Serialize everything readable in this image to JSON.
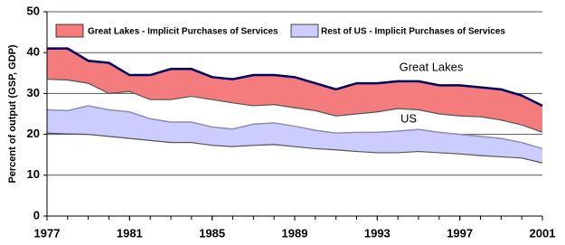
{
  "chart_data": {
    "type": "range-area",
    "y_axis_label": "Percent of output (GSP, GDP)",
    "x": [
      1977,
      1978,
      1979,
      1980,
      1981,
      1982,
      1983,
      1984,
      1985,
      1986,
      1987,
      1988,
      1989,
      1990,
      1991,
      1992,
      1993,
      1994,
      1995,
      1996,
      1997,
      1998,
      1999,
      2000,
      2001
    ],
    "xlim": [
      1977,
      2001
    ],
    "xticks": [
      1977,
      1981,
      1985,
      1989,
      1993,
      1997,
      2001
    ],
    "ylim": [
      0,
      50
    ],
    "yticks": [
      0,
      10,
      20,
      30,
      40,
      50
    ],
    "grid": true,
    "annotations": [
      "Great Lakes",
      "US"
    ],
    "series": [
      {
        "name": "Great Lakes - Implicit Purchases of Services",
        "color": "#f47c7c",
        "high_color": "#000066",
        "low_color": "#555555",
        "high": [
          41,
          41,
          38,
          37.5,
          34.5,
          34.5,
          36,
          36,
          34,
          33.5,
          34.5,
          34.5,
          34,
          32.5,
          31,
          32.5,
          32.5,
          33,
          33,
          32,
          32,
          31.5,
          31,
          29.5,
          27
        ],
        "low": [
          33.5,
          33.3,
          32.5,
          30,
          30.5,
          28.5,
          28.5,
          29.3,
          28.5,
          27.7,
          27,
          27.3,
          26.5,
          25.8,
          24.5,
          25,
          25.5,
          26.3,
          26,
          25,
          24.5,
          24.3,
          23.5,
          22.3,
          20.5
        ]
      },
      {
        "name": "Rest of US - Implicit Purchases of Services",
        "color": "#ccccff",
        "high_color": "#8c8cb4",
        "low_color": "#555555",
        "high": [
          26,
          25.8,
          27,
          26,
          25.5,
          23.8,
          23,
          23,
          21.8,
          21.3,
          22.5,
          22.8,
          22,
          21,
          20.3,
          20.5,
          20.5,
          20.8,
          21.2,
          20.5,
          20,
          19.5,
          19,
          18,
          16.5
        ],
        "low": [
          20.3,
          20.1,
          20,
          19.5,
          19,
          18.5,
          18,
          18,
          17.3,
          17,
          17.3,
          17.5,
          17,
          16.5,
          16.2,
          15.8,
          15.5,
          15.5,
          15.8,
          15.5,
          15.2,
          14.8,
          14.5,
          14.2,
          13
        ]
      }
    ]
  }
}
